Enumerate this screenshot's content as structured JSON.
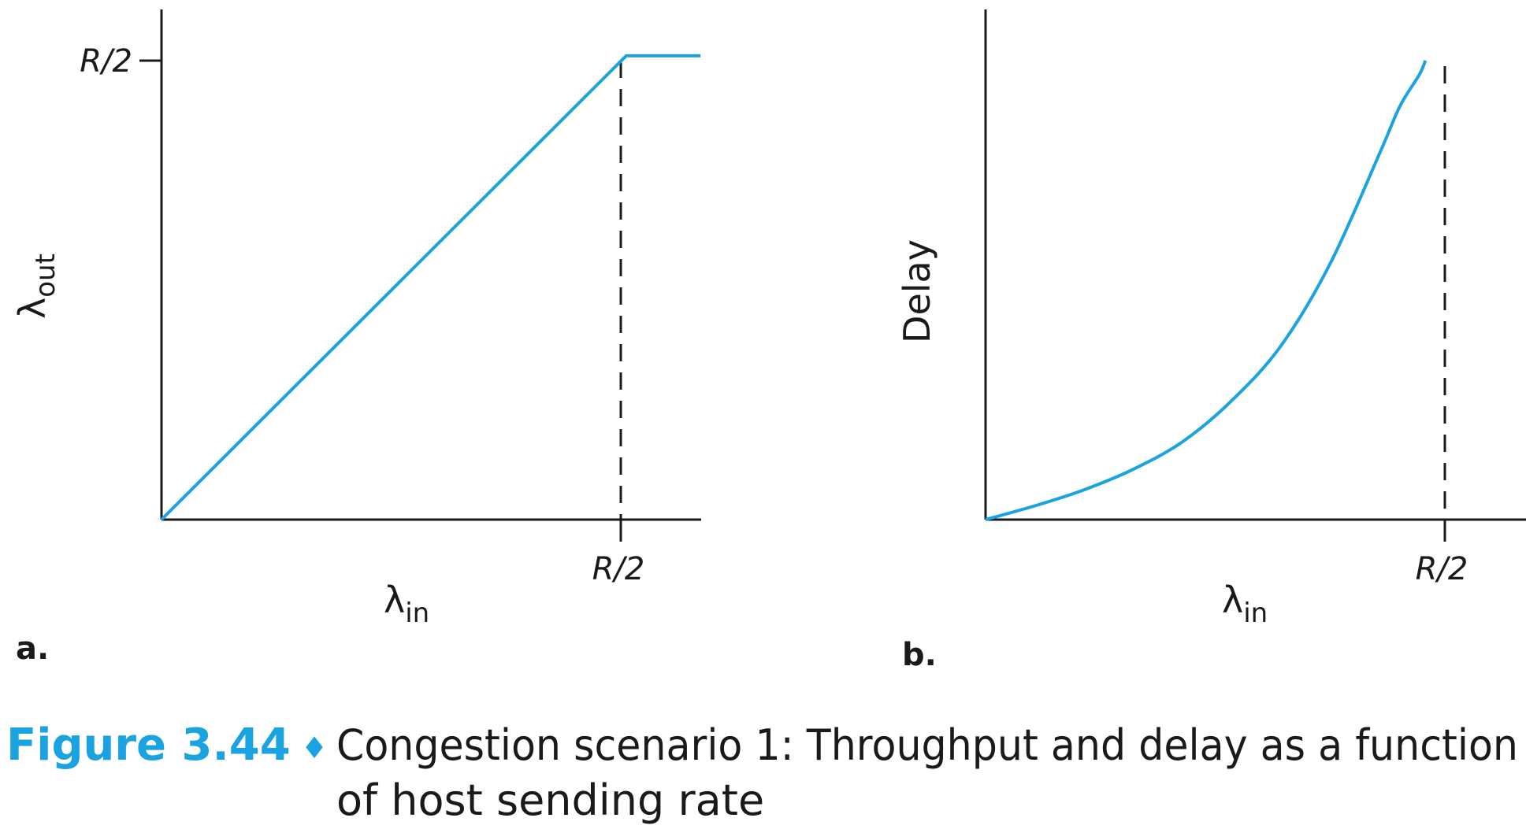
{
  "figure": {
    "number": "Figure 3.44",
    "diamond": "♦",
    "caption_line1": "Congestion scenario 1: Throughput and delay as a function",
    "caption_line2": "of host sending rate",
    "accent_color": "#1aa3e0"
  },
  "chart_data": [
    {
      "type": "line",
      "panel": "a.",
      "ylabel_main": "λ",
      "ylabel_sub": "out",
      "xlabel_main": "λ",
      "xlabel_sub": "in",
      "x_tick_label": "R/2",
      "y_tick_label": "R/2",
      "xlim": [
        0,
        0.59
      ],
      "ylim": [
        0,
        0.55
      ],
      "series": [
        {
          "color": "#1aa3e0",
          "x": [
            0,
            0.5,
            0.58
          ],
          "y": [
            0,
            0.5,
            0.5
          ]
        }
      ],
      "reference_lines": [
        {
          "orientation": "vertical",
          "x": 0.5,
          "style": "dashed"
        }
      ]
    },
    {
      "type": "line",
      "panel": "b.",
      "ylabel_main": "Delay",
      "xlabel_main": "λ",
      "xlabel_sub": "in",
      "x_tick_label": "R/2",
      "xlim": [
        0,
        0.56
      ],
      "ylim": [
        0,
        1
      ],
      "series": [
        {
          "color": "#1aa3e0",
          "x": [
            0,
            0.05,
            0.1,
            0.15,
            0.2,
            0.25,
            0.3,
            0.35,
            0.4,
            0.42,
            0.44,
            0.446
          ],
          "y": [
            0,
            0.03,
            0.065,
            0.11,
            0.17,
            0.26,
            0.38,
            0.56,
            0.8,
            0.9,
            0.97,
            1.0
          ]
        }
      ],
      "reference_lines": [
        {
          "orientation": "vertical",
          "x": 0.5,
          "style": "dashed"
        }
      ]
    }
  ]
}
